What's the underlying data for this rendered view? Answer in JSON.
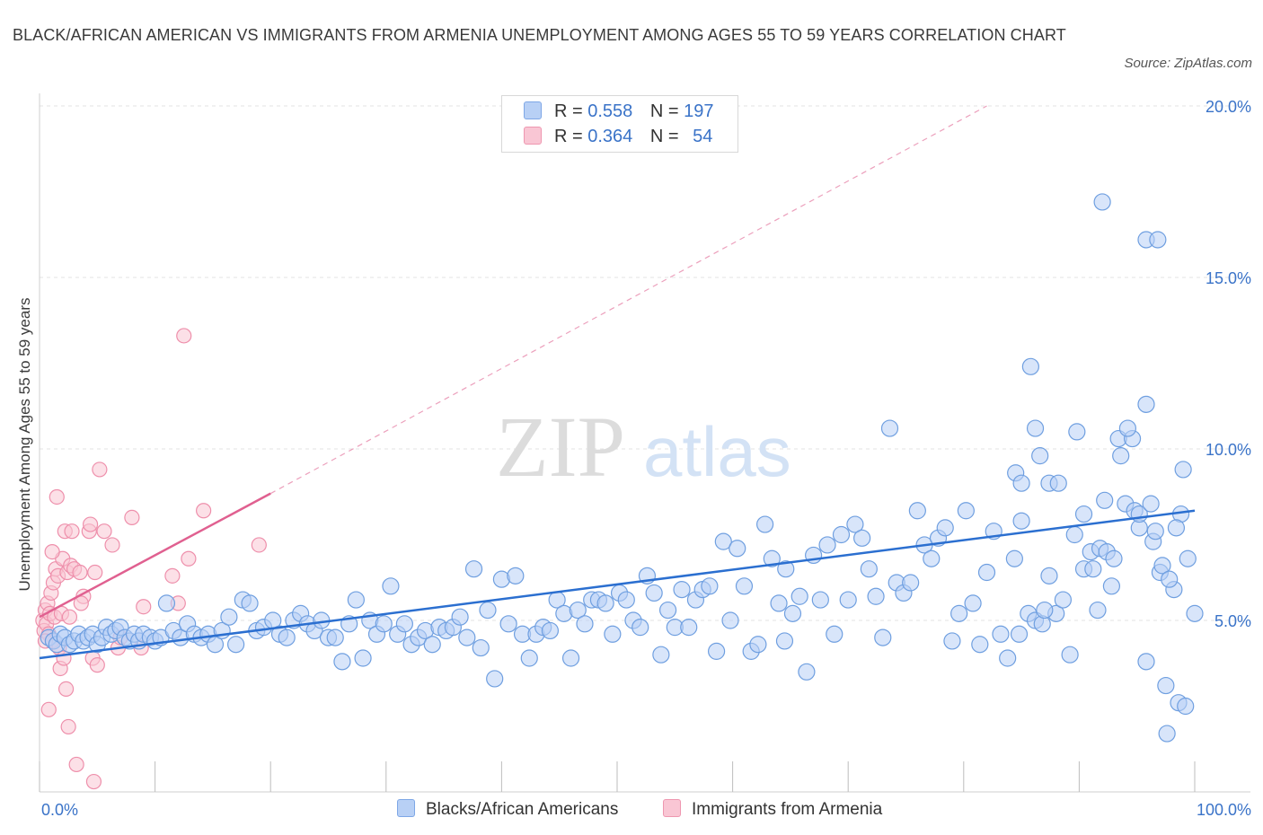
{
  "title": "BLACK/AFRICAN AMERICAN VS IMMIGRANTS FROM ARMENIA UNEMPLOYMENT AMONG AGES 55 TO 59 YEARS CORRELATION CHART",
  "source": "Source: ZipAtlas.com",
  "watermark": {
    "zip": "ZIP",
    "atlas": "atlas"
  },
  "legend_top": [
    {
      "r_label": "R =",
      "r_value": "0.558",
      "n_label": "N =",
      "n_value": "197"
    },
    {
      "r_label": "R =",
      "r_value": "0.364",
      "n_label": "N =",
      "n_value": "54"
    }
  ],
  "colors": {
    "blue_fill": "#b8d0f5",
    "blue_stroke": "#6f9fe0",
    "blue_line": "#2b6fd0",
    "pink_fill": "#f9c6d4",
    "pink_stroke": "#ee8fab",
    "pink_line": "#e06090",
    "axis_text": "#3a73c8",
    "grid": "#e3e3e3"
  },
  "chart_data": {
    "type": "scatter",
    "title": "BLACK/AFRICAN AMERICAN VS IMMIGRANTS FROM ARMENIA UNEMPLOYMENT AMONG AGES 55 TO 59 YEARS CORRELATION CHART",
    "xlabel": "",
    "ylabel": "Unemployment Among Ages 55 to 59 years",
    "xlim": [
      0,
      100
    ],
    "ylim": [
      0,
      20
    ],
    "x_tick_labels": [
      "0.0%",
      "100.0%"
    ],
    "y_ticks": [
      5,
      10,
      15,
      20
    ],
    "y_tick_labels": [
      "5.0%",
      "10.0%",
      "15.0%",
      "20.0%"
    ],
    "grid": true,
    "legend_position": "bottom",
    "series": [
      {
        "name": "Blacks/African Americans",
        "color": "#6f9fe0",
        "trend": {
          "x": [
            0,
            100
          ],
          "y": [
            3.9,
            8.2
          ],
          "style": "solid"
        },
        "points": [
          [
            0.8,
            4.5
          ],
          [
            1.2,
            4.4
          ],
          [
            1.5,
            4.3
          ],
          [
            1.8,
            4.6
          ],
          [
            2.2,
            4.5
          ],
          [
            2.6,
            4.3
          ],
          [
            3.0,
            4.4
          ],
          [
            3.4,
            4.6
          ],
          [
            3.8,
            4.4
          ],
          [
            4.2,
            4.5
          ],
          [
            4.6,
            4.6
          ],
          [
            5.0,
            4.3
          ],
          [
            5.4,
            4.5
          ],
          [
            5.8,
            4.8
          ],
          [
            6.2,
            4.6
          ],
          [
            6.6,
            4.7
          ],
          [
            7.0,
            4.8
          ],
          [
            7.4,
            4.5
          ],
          [
            7.8,
            4.4
          ],
          [
            8.2,
            4.6
          ],
          [
            8.6,
            4.4
          ],
          [
            9.0,
            4.6
          ],
          [
            9.6,
            4.5
          ],
          [
            10.0,
            4.4
          ],
          [
            10.5,
            4.5
          ],
          [
            11.0,
            5.5
          ],
          [
            11.6,
            4.7
          ],
          [
            12.2,
            4.5
          ],
          [
            12.8,
            4.9
          ],
          [
            13.4,
            4.6
          ],
          [
            14.0,
            4.5
          ],
          [
            14.6,
            4.6
          ],
          [
            15.2,
            4.3
          ],
          [
            15.8,
            4.7
          ],
          [
            16.4,
            5.1
          ],
          [
            17.0,
            4.3
          ],
          [
            17.6,
            5.6
          ],
          [
            18.2,
            5.5
          ],
          [
            18.8,
            4.7
          ],
          [
            19.4,
            4.8
          ],
          [
            20.2,
            5.0
          ],
          [
            20.8,
            4.6
          ],
          [
            21.4,
            4.5
          ],
          [
            22.0,
            5.0
          ],
          [
            22.6,
            5.2
          ],
          [
            23.2,
            4.9
          ],
          [
            23.8,
            4.7
          ],
          [
            24.4,
            5.0
          ],
          [
            25.0,
            4.5
          ],
          [
            25.6,
            4.5
          ],
          [
            26.2,
            3.8
          ],
          [
            26.8,
            4.9
          ],
          [
            27.4,
            5.6
          ],
          [
            28.0,
            3.9
          ],
          [
            28.6,
            5.0
          ],
          [
            29.2,
            4.6
          ],
          [
            29.8,
            4.9
          ],
          [
            30.4,
            6.0
          ],
          [
            31.0,
            4.6
          ],
          [
            31.6,
            4.9
          ],
          [
            32.2,
            4.3
          ],
          [
            32.8,
            4.5
          ],
          [
            33.4,
            4.7
          ],
          [
            34.0,
            4.3
          ],
          [
            34.6,
            4.8
          ],
          [
            35.2,
            4.7
          ],
          [
            35.8,
            4.8
          ],
          [
            36.4,
            5.1
          ],
          [
            37.0,
            4.5
          ],
          [
            37.6,
            6.5
          ],
          [
            38.2,
            4.2
          ],
          [
            38.8,
            5.3
          ],
          [
            39.4,
            3.3
          ],
          [
            40.0,
            6.2
          ],
          [
            40.6,
            4.9
          ],
          [
            41.2,
            6.3
          ],
          [
            41.8,
            4.6
          ],
          [
            42.4,
            3.9
          ],
          [
            43.0,
            4.6
          ],
          [
            43.6,
            4.8
          ],
          [
            44.2,
            4.7
          ],
          [
            44.8,
            5.6
          ],
          [
            45.4,
            5.2
          ],
          [
            46.0,
            3.9
          ],
          [
            46.6,
            5.3
          ],
          [
            47.2,
            4.9
          ],
          [
            47.8,
            5.6
          ],
          [
            48.4,
            5.6
          ],
          [
            49.0,
            5.5
          ],
          [
            49.6,
            4.6
          ],
          [
            50.2,
            5.8
          ],
          [
            50.8,
            5.6
          ],
          [
            51.4,
            5.0
          ],
          [
            52.0,
            4.8
          ],
          [
            52.6,
            6.3
          ],
          [
            53.2,
            5.8
          ],
          [
            53.8,
            4.0
          ],
          [
            54.4,
            5.3
          ],
          [
            55.0,
            4.8
          ],
          [
            55.6,
            5.9
          ],
          [
            56.2,
            4.8
          ],
          [
            56.8,
            5.6
          ],
          [
            57.4,
            5.9
          ],
          [
            58.0,
            6.0
          ],
          [
            58.6,
            4.1
          ],
          [
            59.2,
            7.3
          ],
          [
            59.8,
            5.0
          ],
          [
            60.4,
            7.1
          ],
          [
            61.0,
            6.0
          ],
          [
            61.6,
            4.1
          ],
          [
            62.2,
            4.3
          ],
          [
            62.8,
            7.8
          ],
          [
            63.4,
            6.8
          ],
          [
            64.0,
            5.5
          ],
          [
            64.6,
            6.5
          ],
          [
            65.2,
            5.2
          ],
          [
            65.8,
            5.7
          ],
          [
            66.4,
            3.5
          ],
          [
            67.0,
            6.9
          ],
          [
            67.6,
            5.6
          ],
          [
            68.2,
            7.2
          ],
          [
            68.8,
            4.6
          ],
          [
            69.4,
            7.5
          ],
          [
            70.0,
            5.6
          ],
          [
            70.6,
            7.8
          ],
          [
            71.2,
            7.4
          ],
          [
            71.8,
            6.5
          ],
          [
            72.4,
            5.7
          ],
          [
            73.0,
            4.5
          ],
          [
            73.6,
            10.6
          ],
          [
            74.2,
            6.1
          ],
          [
            74.8,
            5.8
          ],
          [
            75.4,
            6.1
          ],
          [
            76.0,
            8.2
          ],
          [
            76.6,
            7.2
          ],
          [
            77.2,
            6.8
          ],
          [
            77.8,
            7.4
          ],
          [
            78.4,
            7.7
          ],
          [
            79.0,
            4.4
          ],
          [
            79.6,
            5.2
          ],
          [
            80.2,
            8.2
          ],
          [
            80.8,
            5.5
          ],
          [
            81.4,
            4.3
          ],
          [
            82.0,
            6.4
          ],
          [
            82.6,
            7.6
          ],
          [
            83.2,
            4.6
          ],
          [
            83.8,
            3.9
          ],
          [
            84.4,
            6.8
          ],
          [
            85.0,
            7.9
          ],
          [
            85.6,
            5.2
          ],
          [
            86.2,
            5.0
          ],
          [
            86.8,
            4.9
          ],
          [
            87.4,
            6.3
          ],
          [
            88.0,
            5.2
          ],
          [
            88.6,
            5.6
          ],
          [
            89.2,
            4.0
          ],
          [
            89.8,
            10.5
          ],
          [
            90.4,
            6.5
          ],
          [
            91.0,
            7.0
          ],
          [
            91.6,
            5.3
          ],
          [
            92.2,
            8.5
          ],
          [
            92.8,
            6.0
          ],
          [
            93.4,
            10.3
          ],
          [
            94.0,
            8.4
          ],
          [
            94.6,
            10.3
          ],
          [
            95.2,
            7.7
          ],
          [
            95.8,
            3.8
          ],
          [
            96.4,
            7.3
          ],
          [
            97.0,
            6.4
          ],
          [
            97.6,
            1.7
          ],
          [
            98.2,
            5.9
          ],
          [
            98.8,
            8.1
          ],
          [
            99.4,
            6.8
          ],
          [
            100.0,
            5.2
          ],
          [
            64.5,
            4.4
          ]
        ],
        "points_right": [
          [
            84.5,
            9.3
          ],
          [
            85.0,
            9.0
          ],
          [
            85.8,
            12.4
          ],
          [
            86.2,
            10.6
          ],
          [
            86.6,
            9.8
          ],
          [
            87.4,
            9.0
          ],
          [
            88.2,
            9.0
          ],
          [
            89.6,
            7.5
          ],
          [
            90.4,
            8.1
          ],
          [
            91.2,
            6.5
          ],
          [
            91.8,
            7.1
          ],
          [
            92.4,
            7.0
          ],
          [
            93.0,
            6.8
          ],
          [
            93.6,
            9.8
          ],
          [
            94.2,
            10.6
          ],
          [
            94.8,
            8.2
          ],
          [
            95.2,
            8.1
          ],
          [
            95.8,
            11.3
          ],
          [
            96.2,
            8.4
          ],
          [
            96.6,
            7.6
          ],
          [
            97.2,
            6.6
          ],
          [
            97.8,
            6.2
          ],
          [
            98.4,
            7.7
          ],
          [
            99.0,
            9.4
          ],
          [
            92.0,
            17.2
          ],
          [
            95.8,
            16.1
          ],
          [
            96.8,
            16.1
          ],
          [
            97.5,
            3.1
          ],
          [
            98.6,
            2.6
          ],
          [
            99.2,
            2.5
          ],
          [
            87.0,
            5.3
          ],
          [
            84.8,
            4.6
          ]
        ]
      },
      {
        "name": "Immigrants from Armenia",
        "color": "#ee8fab",
        "trend": {
          "x": [
            0,
            20
          ],
          "y": [
            5.1,
            8.7
          ],
          "style": "solid",
          "extended": {
            "x": [
              20,
              82
            ],
            "y": [
              8.7,
              20.0
            ],
            "style": "dashed"
          }
        },
        "points": [
          [
            0.3,
            5.0
          ],
          [
            0.4,
            4.7
          ],
          [
            0.5,
            5.3
          ],
          [
            0.6,
            4.9
          ],
          [
            0.7,
            5.5
          ],
          [
            0.8,
            4.6
          ],
          [
            0.9,
            5.2
          ],
          [
            1.0,
            5.8
          ],
          [
            1.1,
            4.4
          ],
          [
            1.2,
            6.1
          ],
          [
            1.3,
            5.1
          ],
          [
            1.4,
            6.5
          ],
          [
            1.5,
            8.6
          ],
          [
            1.6,
            6.3
          ],
          [
            1.7,
            4.2
          ],
          [
            1.8,
            3.6
          ],
          [
            1.9,
            5.2
          ],
          [
            2.0,
            6.8
          ],
          [
            2.1,
            3.9
          ],
          [
            2.2,
            7.6
          ],
          [
            2.3,
            3.0
          ],
          [
            2.4,
            6.4
          ],
          [
            2.5,
            1.9
          ],
          [
            2.6,
            5.1
          ],
          [
            2.7,
            6.6
          ],
          [
            2.8,
            7.6
          ],
          [
            3.0,
            6.5
          ],
          [
            3.2,
            0.8
          ],
          [
            3.5,
            6.4
          ],
          [
            3.8,
            5.7
          ],
          [
            4.3,
            7.6
          ],
          [
            4.4,
            7.8
          ],
          [
            4.6,
            3.9
          ],
          [
            4.8,
            6.4
          ],
          [
            5.0,
            3.7
          ],
          [
            5.2,
            9.4
          ],
          [
            5.6,
            7.6
          ],
          [
            6.3,
            7.2
          ],
          [
            6.8,
            4.2
          ],
          [
            7.0,
            4.5
          ],
          [
            8.0,
            8.0
          ],
          [
            8.8,
            4.2
          ],
          [
            9.0,
            5.4
          ],
          [
            11.5,
            6.3
          ],
          [
            12.0,
            5.5
          ],
          [
            12.5,
            13.3
          ],
          [
            12.9,
            6.8
          ],
          [
            14.2,
            8.2
          ],
          [
            19.0,
            7.2
          ],
          [
            0.8,
            2.4
          ],
          [
            4.7,
            0.3
          ],
          [
            3.6,
            5.5
          ],
          [
            1.1,
            7.0
          ],
          [
            0.5,
            4.4
          ]
        ]
      }
    ]
  },
  "legend_bottom": [
    {
      "label": "Blacks/African Americans"
    },
    {
      "label": "Immigrants from Armenia"
    }
  ]
}
